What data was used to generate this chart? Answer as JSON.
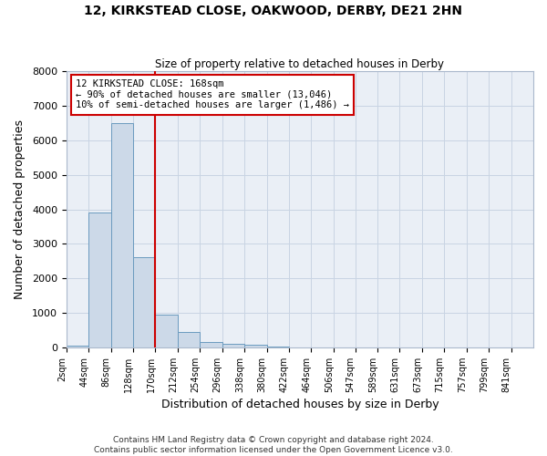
{
  "title": "12, KIRKSTEAD CLOSE, OAKWOOD, DERBY, DE21 2HN",
  "subtitle": "Size of property relative to detached houses in Derby",
  "xlabel": "Distribution of detached houses by size in Derby",
  "ylabel": "Number of detached properties",
  "bin_labels": [
    "2sqm",
    "44sqm",
    "86sqm",
    "128sqm",
    "170sqm",
    "212sqm",
    "254sqm",
    "296sqm",
    "338sqm",
    "380sqm",
    "422sqm",
    "464sqm",
    "506sqm",
    "547sqm",
    "589sqm",
    "631sqm",
    "673sqm",
    "715sqm",
    "757sqm",
    "799sqm",
    "841sqm"
  ],
  "bin_left_edges": [
    2,
    44,
    86,
    128,
    170,
    212,
    254,
    296,
    338,
    380,
    422,
    464,
    506,
    547,
    589,
    631,
    673,
    715,
    757,
    799,
    841
  ],
  "bar_heights": [
    50,
    3900,
    6500,
    2600,
    950,
    450,
    150,
    100,
    75,
    10,
    5,
    0,
    0,
    0,
    0,
    0,
    0,
    0,
    0,
    0
  ],
  "bar_color": "#ccd9e8",
  "bar_edgecolor": "#6b9bbf",
  "grid_color": "#c8d4e3",
  "background_color": "#eaeff6",
  "vline_x": 170,
  "vline_color": "#cc0000",
  "annotation_text": "12 KIRKSTEAD CLOSE: 168sqm\n← 90% of detached houses are smaller (13,046)\n10% of semi-detached houses are larger (1,486) →",
  "annotation_box_color": "#cc0000",
  "ylim": [
    0,
    8000
  ],
  "yticks": [
    0,
    1000,
    2000,
    3000,
    4000,
    5000,
    6000,
    7000,
    8000
  ],
  "footer_line1": "Contains HM Land Registry data © Crown copyright and database right 2024.",
  "footer_line2": "Contains public sector information licensed under the Open Government Licence v3.0."
}
